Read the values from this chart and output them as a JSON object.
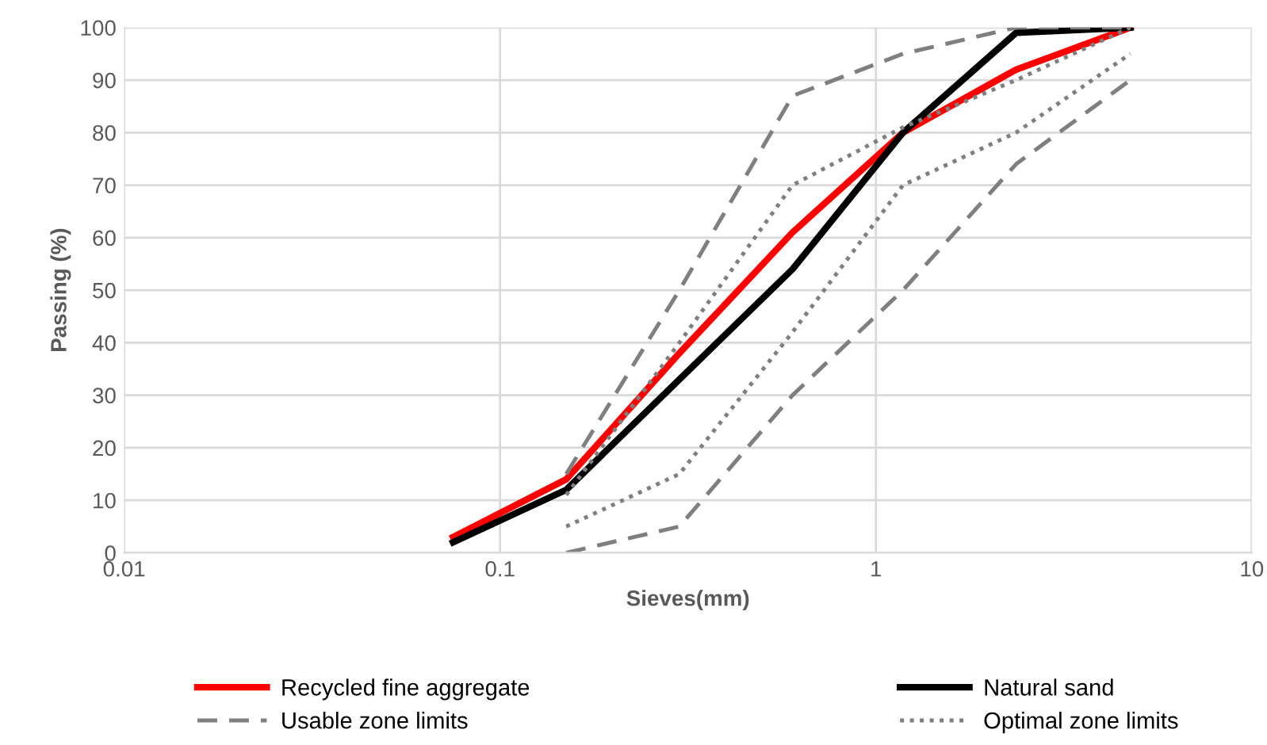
{
  "chart_data": {
    "type": "line",
    "xlabel": "Sieves(mm)",
    "ylabel": "Passing (%)",
    "x": [
      0.075,
      0.15,
      0.3,
      0.6,
      1.18,
      2.36,
      4.75
    ],
    "log": "x",
    "xlim": [
      0.01,
      10
    ],
    "xticks": [
      0.01,
      0.1,
      1,
      10
    ],
    "ylim": [
      0,
      100
    ],
    "yticks": [
      0,
      10,
      20,
      30,
      40,
      50,
      60,
      70,
      80,
      90,
      100
    ],
    "grid": true,
    "legend": "bottom",
    "marker": "none",
    "series": [
      {
        "name": "Recycled fine aggregate",
        "color": "#ff0000",
        "line_style": "solid",
        "values": [
          3,
          14,
          38,
          61,
          80,
          92,
          100
        ]
      },
      {
        "name": "Natural sand",
        "color": "#000000",
        "line_style": "solid",
        "values": [
          2,
          12,
          33,
          54,
          80,
          99,
          100
        ]
      },
      {
        "name": "Usable zone limits",
        "color": "#7f7f7f",
        "line_style": "dashed",
        "x": [
          0.15,
          0.3,
          0.6,
          1.18,
          2.36,
          4.75
        ],
        "values": [
          15,
          50,
          87,
          95,
          100,
          100
        ]
      },
      {
        "name": null,
        "color": "#7f7f7f",
        "line_style": "dashed",
        "x": [
          0.15,
          0.3,
          0.6,
          1.18,
          2.36,
          4.75
        ],
        "values": [
          0,
          5,
          30,
          50,
          74,
          90
        ]
      },
      {
        "name": "Optimal zone limits",
        "color": "#7f7f7f",
        "line_style": "dotted",
        "x": [
          0.15,
          0.3,
          0.6,
          1.18,
          2.36,
          4.75
        ],
        "values": [
          11,
          40,
          70,
          81,
          90,
          100
        ]
      },
      {
        "name": null,
        "color": "#7f7f7f",
        "line_style": "dotted",
        "x": [
          0.15,
          0.3,
          0.6,
          1.18,
          2.36,
          4.75
        ],
        "values": [
          5,
          15,
          42,
          70,
          80,
          95
        ]
      }
    ]
  }
}
